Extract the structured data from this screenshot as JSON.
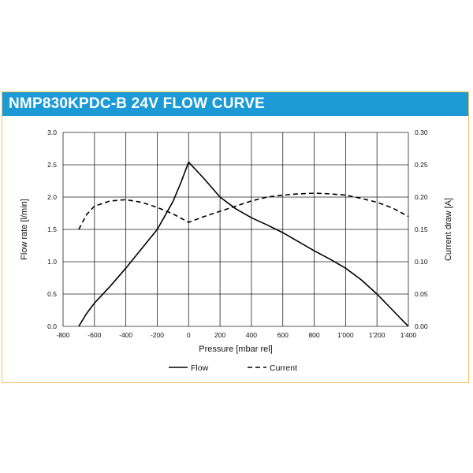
{
  "chart_data": {
    "type": "line",
    "title": "NMP830KPDC-B 24V FLOW CURVE",
    "xlabel": "Pressure [mbar rel]",
    "ylabel": "Flow rate [l/min]",
    "y2label": "Current draw [A]",
    "xlim": [
      -800,
      1400
    ],
    "ylim": [
      0,
      3.0
    ],
    "y2lim": [
      0,
      0.3
    ],
    "x_ticks": [
      "-800",
      "-600",
      "-400",
      "-200",
      "0",
      "200",
      "400",
      "600",
      "800",
      "1'000",
      "1'200",
      "1'400"
    ],
    "y_ticks": [
      "0.0",
      "0.5",
      "1.0",
      "1.5",
      "2.0",
      "2.5",
      "3.0"
    ],
    "y2_ticks": [
      "0.00",
      "0.05",
      "0.10",
      "0.15",
      "0.20",
      "0.25",
      "0.30"
    ],
    "grid": true,
    "legend_position": "bottom",
    "series": [
      {
        "name": "Flow",
        "axis": "left",
        "style": "solid",
        "x": [
          -700,
          -650,
          -600,
          -500,
          -400,
          -300,
          -200,
          -100,
          -50,
          0,
          100,
          200,
          300,
          400,
          500,
          600,
          700,
          800,
          900,
          1000,
          1100,
          1200,
          1300,
          1400
        ],
        "y": [
          0.0,
          0.2,
          0.36,
          0.62,
          0.9,
          1.2,
          1.5,
          1.93,
          2.22,
          2.54,
          2.28,
          2.0,
          1.82,
          1.68,
          1.57,
          1.45,
          1.31,
          1.17,
          1.04,
          0.9,
          0.72,
          0.5,
          0.25,
          0.0
        ]
      },
      {
        "name": "Current",
        "axis": "right",
        "style": "dashed",
        "x": [
          -700,
          -650,
          -600,
          -500,
          -400,
          -300,
          -200,
          -100,
          0,
          100,
          200,
          300,
          400,
          500,
          600,
          700,
          800,
          900,
          1000,
          1100,
          1200,
          1300,
          1400
        ],
        "y": [
          0.15,
          0.173,
          0.186,
          0.194,
          0.196,
          0.192,
          0.184,
          0.174,
          0.161,
          0.17,
          0.178,
          0.186,
          0.194,
          0.2,
          0.203,
          0.205,
          0.206,
          0.205,
          0.203,
          0.198,
          0.192,
          0.183,
          0.17
        ]
      }
    ]
  }
}
